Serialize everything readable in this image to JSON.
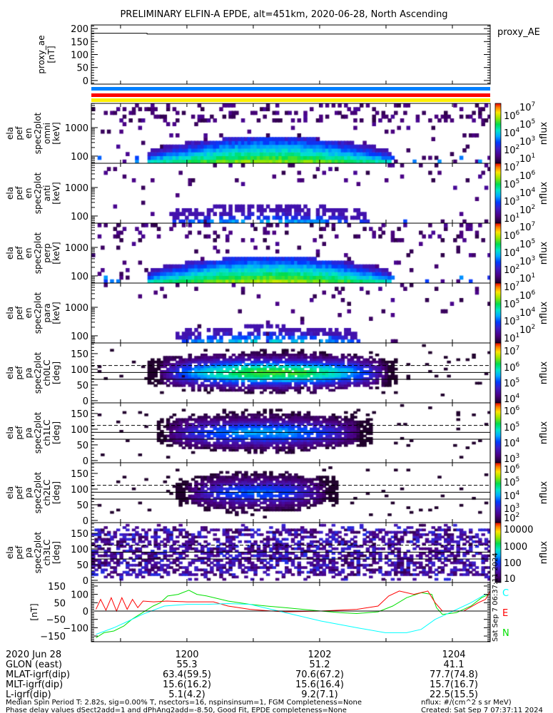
{
  "title": "PRELIMINARY ELFIN-A EPDE, alt=451km, 2020-06-28, North Ascending",
  "chart_data": {
    "type": "heatmap",
    "x_units": "minutes after 12:00 UT",
    "xlim": [
      -1.44,
      4.57
    ],
    "xticks": [
      -1,
      0,
      1,
      2,
      3,
      4
    ],
    "panels": [
      {
        "id": "proxy_ae",
        "type": "line",
        "ylabel": [
          "proxy_ae",
          "[nT]"
        ],
        "ylim": [
          -14,
          214
        ],
        "yscale": "linear",
        "yticks": [
          {
            "v": 0,
            "label": "0"
          },
          {
            "v": 50,
            "label": "50"
          },
          {
            "v": 100,
            "label": "100"
          },
          {
            "v": 150,
            "label": "150"
          },
          {
            "v": 200,
            "label": "200"
          }
        ],
        "legend": "proxy_AE",
        "series": [
          {
            "name": "proxy_AE",
            "color": "#000000",
            "t": [
              -1.44,
              -0.6,
              -0.6,
              4.57
            ],
            "v": [
              182,
              182,
              179,
              179
            ]
          }
        ]
      },
      {
        "id": "en_omni",
        "type": "heatmap",
        "kind": "energy",
        "ylabel": [
          "ela",
          "pef",
          "en",
          "spec2plot",
          "omni",
          "[keV]"
        ],
        "ylim": [
          56,
          7080
        ],
        "yscale": "log",
        "yticks": [
          {
            "v": 100,
            "label": "100"
          },
          {
            "v": 1000,
            "label": "1000"
          }
        ],
        "blob": {
          "t_start": -0.62,
          "t_end": 3.05,
          "peak": 0.78,
          "extent": 0.55,
          "fill": 1.0
        },
        "noise": 0.3,
        "zlabel": "nflux",
        "zticks": [
          {
            "b": "10",
            "e": "7"
          },
          {
            "b": "10",
            "e": "6"
          },
          {
            "b": "10",
            "e": "5"
          },
          {
            "b": "10",
            "e": "4"
          },
          {
            "b": "10",
            "e": "3"
          },
          {
            "b": "10",
            "e": "2"
          },
          {
            "b": "10",
            "e": "1"
          }
        ]
      },
      {
        "id": "en_anti",
        "type": "heatmap",
        "kind": "energy",
        "ylabel": [
          "ela",
          "pef",
          "en",
          "spec2plot",
          "anti",
          "[keV]"
        ],
        "ylim": [
          56,
          7080
        ],
        "yscale": "log",
        "yticks": [
          {
            "v": 100,
            "label": "100"
          },
          {
            "v": 1000,
            "label": "1000"
          }
        ],
        "blob": {
          "t_start": -0.3,
          "t_end": 2.7,
          "peak": 0.5,
          "extent": 0.3,
          "fill": 0.55
        },
        "noise": 0.08,
        "zlabel": "nflux",
        "zticks": [
          {
            "b": "10",
            "e": "7"
          },
          {
            "b": "10",
            "e": "6"
          },
          {
            "b": "10",
            "e": "5"
          },
          {
            "b": "10",
            "e": "4"
          },
          {
            "b": "10",
            "e": "3"
          },
          {
            "b": "10",
            "e": "2"
          },
          {
            "b": "10",
            "e": "1"
          }
        ]
      },
      {
        "id": "en_perp",
        "type": "heatmap",
        "kind": "energy",
        "ylabel": [
          "ela",
          "pef",
          "en",
          "spec2plot",
          "perp",
          "[keV]"
        ],
        "ylim": [
          56,
          7080
        ],
        "yscale": "log",
        "yticks": [
          {
            "v": 100,
            "label": "100"
          },
          {
            "v": 1000,
            "label": "1000"
          }
        ],
        "blob": {
          "t_start": -0.62,
          "t_end": 3.05,
          "peak": 0.8,
          "extent": 0.55,
          "fill": 1.0
        },
        "noise": 0.2,
        "zlabel": "nflux",
        "zticks": [
          {
            "b": "10",
            "e": "7"
          },
          {
            "b": "10",
            "e": "6"
          },
          {
            "b": "10",
            "e": "5"
          },
          {
            "b": "10",
            "e": "4"
          },
          {
            "b": "10",
            "e": "3"
          },
          {
            "b": "10",
            "e": "2"
          },
          {
            "b": "10",
            "e": "1"
          }
        ]
      },
      {
        "id": "en_para",
        "type": "heatmap",
        "kind": "energy",
        "ylabel": [
          "ela",
          "pef",
          "en",
          "spec2plot",
          "para",
          "[keV]"
        ],
        "ylim": [
          56,
          7080
        ],
        "yscale": "log",
        "yticks": [
          {
            "v": 100,
            "label": "100"
          },
          {
            "v": 1000,
            "label": "1000"
          }
        ],
        "blob": {
          "t_start": -0.2,
          "t_end": 2.6,
          "peak": 0.55,
          "extent": 0.25,
          "fill": 0.6
        },
        "noise": 0.08,
        "zlabel": "nflux",
        "zticks": [
          {
            "b": "10",
            "e": "7"
          },
          {
            "b": "10",
            "e": "6"
          },
          {
            "b": "10",
            "e": "5"
          },
          {
            "b": "10",
            "e": "4"
          },
          {
            "b": "10",
            "e": "3"
          },
          {
            "b": "10",
            "e": "2"
          },
          {
            "b": "10",
            "e": "1"
          }
        ]
      },
      {
        "id": "pa_ch0",
        "type": "heatmap",
        "kind": "pitch",
        "ylabel": [
          "ela",
          "pef",
          "pa",
          "spec2plot",
          "ch0LC",
          "[deg]"
        ],
        "ylim": [
          -7,
          184
        ],
        "yscale": "linear",
        "yticks": [
          {
            "v": 0,
            "label": "0"
          },
          {
            "v": 50,
            "label": "50"
          },
          {
            "v": 100,
            "label": "100"
          },
          {
            "v": 150,
            "label": "150"
          }
        ],
        "blob": {
          "t_start": -0.45,
          "t_end": 3.0,
          "peak": 0.7
        },
        "noise": 0.05,
        "lc_lines": {
          "dashed": 112,
          "solid": [
            90,
            68
          ]
        },
        "zlabel": "nflux",
        "zticks": [
          {
            "b": "10",
            "e": "7"
          },
          {
            "b": "10",
            "e": "6"
          },
          {
            "b": "10",
            "e": "5"
          },
          {
            "b": "10",
            "e": "4"
          }
        ]
      },
      {
        "id": "pa_ch1",
        "type": "heatmap",
        "kind": "pitch",
        "ylabel": [
          "ela",
          "pef",
          "pa",
          "spec2plot",
          "ch1LC",
          "[deg]"
        ],
        "ylim": [
          -7,
          184
        ],
        "yscale": "linear",
        "yticks": [
          {
            "v": 0,
            "label": "0"
          },
          {
            "v": 50,
            "label": "50"
          },
          {
            "v": 100,
            "label": "100"
          },
          {
            "v": 150,
            "label": "150"
          }
        ],
        "blob": {
          "t_start": -0.35,
          "t_end": 2.6,
          "peak": 0.45
        },
        "noise": 0.04,
        "lc_lines": {
          "dashed": 112,
          "solid": [
            90,
            68
          ]
        },
        "zlabel": "nflux",
        "zticks": [
          {
            "b": "10",
            "e": "6"
          },
          {
            "b": "10",
            "e": "5"
          },
          {
            "b": "10",
            "e": "4"
          },
          {
            "b": "10",
            "e": "3"
          }
        ]
      },
      {
        "id": "pa_ch2",
        "type": "heatmap",
        "kind": "pitch",
        "ylabel": [
          "ela",
          "pef",
          "pa",
          "spec2plot",
          "ch2LC",
          "[deg]"
        ],
        "ylim": [
          -7,
          184
        ],
        "yscale": "linear",
        "yticks": [
          {
            "v": 0,
            "label": "0"
          },
          {
            "v": 50,
            "label": "50"
          },
          {
            "v": 100,
            "label": "100"
          },
          {
            "v": 150,
            "label": "150"
          }
        ],
        "blob": {
          "t_start": -0.05,
          "t_end": 2.1,
          "peak": 0.38
        },
        "noise": 0.04,
        "lc_lines": {
          "dashed": 112,
          "solid": [
            90,
            68
          ]
        },
        "zlabel": "nflux",
        "zticks": [
          {
            "b": "10",
            "e": "6"
          },
          {
            "b": "10",
            "e": "5"
          },
          {
            "b": "10",
            "e": "4"
          },
          {
            "b": "10",
            "e": "3"
          },
          {
            "b": "10",
            "e": "2"
          }
        ]
      },
      {
        "id": "pa_ch3",
        "type": "heatmap",
        "kind": "pitch",
        "ylabel": [
          "ela",
          "pef",
          "pa",
          "spec2plot",
          "ch3LC",
          "[deg]"
        ],
        "ylim": [
          -7,
          184
        ],
        "yscale": "linear",
        "yticks": [
          {
            "v": 0,
            "label": "0"
          },
          {
            "v": 50,
            "label": "50"
          },
          {
            "v": 100,
            "label": "100"
          },
          {
            "v": 150,
            "label": "150"
          }
        ],
        "blob": null,
        "noise": 0.5,
        "lc_lines": {
          "dashed": 112,
          "solid": [
            90,
            68
          ]
        },
        "zlabel": "nflux",
        "zticks": [
          {
            "b": "10000",
            "e": ""
          },
          {
            "b": "1000",
            "e": ""
          },
          {
            "b": "100",
            "e": ""
          },
          {
            "b": "10",
            "e": ""
          }
        ]
      },
      {
        "id": "fgm",
        "type": "line",
        "ylabel": [
          "[nT]"
        ],
        "ylim": [
          -184,
          171
        ],
        "yscale": "linear",
        "yticks": [
          {
            "v": 150,
            "label": "150"
          },
          {
            "v": 100,
            "label": "100"
          },
          {
            "v": 50,
            "label": "50"
          },
          {
            "v": 0,
            "label": "0"
          },
          {
            "v": -50,
            "label": "−50"
          },
          {
            "v": -100,
            "label": "−100"
          },
          {
            "v": -150,
            "label": "−150"
          }
        ],
        "series": [
          {
            "name": "N",
            "color": "#00e000",
            "t": [
              -1.37,
              -1.25,
              -1.1,
              -0.95,
              -0.83,
              -0.67,
              -0.51,
              -0.4,
              -0.29,
              -0.13,
              0.03,
              0.15,
              0.3,
              0.62,
              0.95,
              1.2,
              1.48,
              1.75,
              2.02,
              2.3,
              2.56,
              2.88,
              3.1,
              3.31,
              3.53,
              3.69,
              3.76,
              3.85,
              4.06,
              4.28,
              4.44,
              4.55
            ],
            "v": [
              -160,
              -130,
              -120,
              -90,
              -50,
              -10,
              30,
              50,
              90,
              100,
              125,
              100,
              90,
              60,
              40,
              30,
              20,
              10,
              0,
              -10,
              -15,
              -5,
              30,
              80,
              110,
              100,
              20,
              -20,
              -10,
              30,
              80,
              100
            ]
          },
          {
            "name": "E",
            "color": "#ff0000",
            "t": [
              -1.37,
              -1.3,
              -1.22,
              -1.14,
              -1.06,
              -0.98,
              -0.9,
              -0.82,
              -0.74,
              -0.66,
              -0.5,
              -0.3,
              0.0,
              0.4,
              0.62,
              0.95,
              1.27,
              1.48,
              2.02,
              2.56,
              2.88,
              3.04,
              3.2,
              3.42,
              3.63,
              3.74,
              3.85,
              4.17,
              4.39,
              4.5,
              4.57
            ],
            "v": [
              10,
              70,
              5,
              80,
              0,
              80,
              10,
              70,
              20,
              60,
              55,
              60,
              55,
              55,
              30,
              10,
              0,
              -5,
              0,
              10,
              30,
              90,
              120,
              100,
              120,
              50,
              0,
              0,
              50,
              70,
              120
            ]
          },
          {
            "name": "C",
            "color": "#00ffff",
            "t": [
              -1.37,
              -1.1,
              -0.88,
              -0.67,
              -0.34,
              0,
              0.3,
              0.62,
              0.95,
              1.27,
              1.7,
              2.02,
              2.56,
              2.99,
              3.31,
              3.53,
              3.74,
              3.96,
              4.28,
              4.5
            ],
            "v": [
              -140,
              -100,
              -60,
              -20,
              30,
              40,
              40,
              45,
              40,
              10,
              -30,
              -60,
              -100,
              -130,
              -130,
              -110,
              -50,
              -10,
              50,
              100
            ]
          }
        ],
        "legend": [
          "C",
          "E",
          "N"
        ]
      }
    ],
    "ephemeris_bars": [
      {
        "color": "#0080ff"
      },
      {
        "color": "#ff0000"
      },
      {
        "color": "#ffee00"
      }
    ]
  },
  "xaxis_table": {
    "rows": [
      {
        "label": "2020 Jun 28",
        "values": [
          "1200",
          "1202",
          "1204"
        ]
      },
      {
        "label": "GLON (east)",
        "values": [
          "55.3",
          "51.2",
          "41.1"
        ]
      },
      {
        "label": "MLAT-igrf(dip)",
        "values": [
          "63.4(59.5)",
          "70.6(67.2)",
          "77.7(74.8)"
        ]
      },
      {
        "label": "MLT-igrf(dip)",
        "values": [
          "15.6(16.2)",
          "15.6(16.4)",
          "15.7(16.7)"
        ]
      },
      {
        "label": "L-igrf(dip)",
        "values": [
          "5.1(4.2)",
          "9.2(7.1)",
          "22.5(15.5)"
        ]
      }
    ]
  },
  "footer": {
    "line1": "Median Spin Period T: 2.82s, sig=0.00% T, nsectors=16, nspinsinsum=1, FGM Completeness=None",
    "line2": "Phase delay values dSect2add=1 and dPhAng2add=-8.50, Good Fit, EPDE completeness=None",
    "units": "nflux: #/(cm^2 s sr MeV)",
    "created": "Created: Sat Sep  7 07:37:11 2024",
    "vertical_stamp": "Sat Sep  7 06:37:11 2024"
  }
}
